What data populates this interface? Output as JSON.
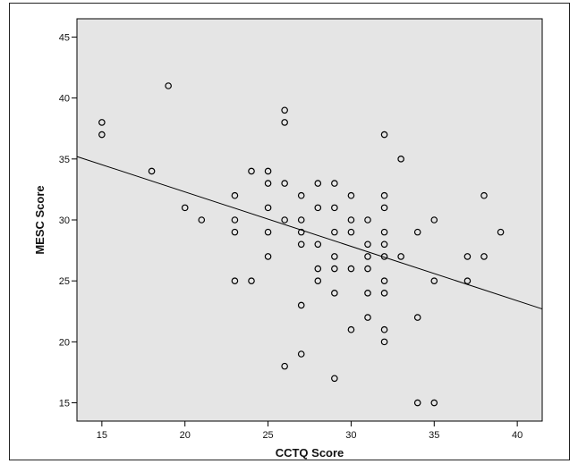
{
  "chart_data": {
    "type": "scatter",
    "xlabel": "CCTQ Score",
    "ylabel": "MESC Score",
    "xlim": [
      13.5,
      41.5
    ],
    "ylim": [
      13.5,
      46.5
    ],
    "xticks": [
      15,
      20,
      25,
      30,
      35,
      40
    ],
    "yticks": [
      15,
      20,
      25,
      30,
      35,
      40,
      45
    ],
    "grid": false,
    "plot_background": "#e5e5e5",
    "marker_color": "#000000",
    "points": [
      {
        "x": 15,
        "y": 38
      },
      {
        "x": 15,
        "y": 37
      },
      {
        "x": 18,
        "y": 34
      },
      {
        "x": 19,
        "y": 41
      },
      {
        "x": 20,
        "y": 31
      },
      {
        "x": 21,
        "y": 30
      },
      {
        "x": 23,
        "y": 32
      },
      {
        "x": 23,
        "y": 30
      },
      {
        "x": 23,
        "y": 29
      },
      {
        "x": 23,
        "y": 25
      },
      {
        "x": 24,
        "y": 34
      },
      {
        "x": 24,
        "y": 25
      },
      {
        "x": 25,
        "y": 34
      },
      {
        "x": 25,
        "y": 33
      },
      {
        "x": 25,
        "y": 31
      },
      {
        "x": 25,
        "y": 29
      },
      {
        "x": 25,
        "y": 27
      },
      {
        "x": 26,
        "y": 39
      },
      {
        "x": 26,
        "y": 38
      },
      {
        "x": 26,
        "y": 33
      },
      {
        "x": 26,
        "y": 30
      },
      {
        "x": 26,
        "y": 18
      },
      {
        "x": 27,
        "y": 32
      },
      {
        "x": 27,
        "y": 30
      },
      {
        "x": 27,
        "y": 29
      },
      {
        "x": 27,
        "y": 28
      },
      {
        "x": 27,
        "y": 23
      },
      {
        "x": 27,
        "y": 19
      },
      {
        "x": 28,
        "y": 33
      },
      {
        "x": 28,
        "y": 31
      },
      {
        "x": 28,
        "y": 28
      },
      {
        "x": 28,
        "y": 26
      },
      {
        "x": 28,
        "y": 25
      },
      {
        "x": 29,
        "y": 33
      },
      {
        "x": 29,
        "y": 31
      },
      {
        "x": 29,
        "y": 29
      },
      {
        "x": 29,
        "y": 27
      },
      {
        "x": 29,
        "y": 26
      },
      {
        "x": 29,
        "y": 24
      },
      {
        "x": 29,
        "y": 17
      },
      {
        "x": 30,
        "y": 32
      },
      {
        "x": 30,
        "y": 30
      },
      {
        "x": 30,
        "y": 29
      },
      {
        "x": 30,
        "y": 26
      },
      {
        "x": 30,
        "y": 21
      },
      {
        "x": 31,
        "y": 30
      },
      {
        "x": 31,
        "y": 28
      },
      {
        "x": 31,
        "y": 27
      },
      {
        "x": 31,
        "y": 26
      },
      {
        "x": 31,
        "y": 24
      },
      {
        "x": 31,
        "y": 22
      },
      {
        "x": 32,
        "y": 37
      },
      {
        "x": 32,
        "y": 32
      },
      {
        "x": 32,
        "y": 31
      },
      {
        "x": 32,
        "y": 29
      },
      {
        "x": 32,
        "y": 28
      },
      {
        "x": 32,
        "y": 27
      },
      {
        "x": 32,
        "y": 25
      },
      {
        "x": 32,
        "y": 24
      },
      {
        "x": 32,
        "y": 21
      },
      {
        "x": 32,
        "y": 20
      },
      {
        "x": 33,
        "y": 35
      },
      {
        "x": 33,
        "y": 27
      },
      {
        "x": 34,
        "y": 29
      },
      {
        "x": 34,
        "y": 22
      },
      {
        "x": 34,
        "y": 15
      },
      {
        "x": 35,
        "y": 30
      },
      {
        "x": 35,
        "y": 25
      },
      {
        "x": 35,
        "y": 15
      },
      {
        "x": 37,
        "y": 27
      },
      {
        "x": 37,
        "y": 25
      },
      {
        "x": 38,
        "y": 32
      },
      {
        "x": 38,
        "y": 27
      },
      {
        "x": 39,
        "y": 29
      }
    ],
    "fit_line": {
      "x": [
        13.5,
        41.5
      ],
      "y": [
        35.2,
        22.7
      ]
    }
  }
}
